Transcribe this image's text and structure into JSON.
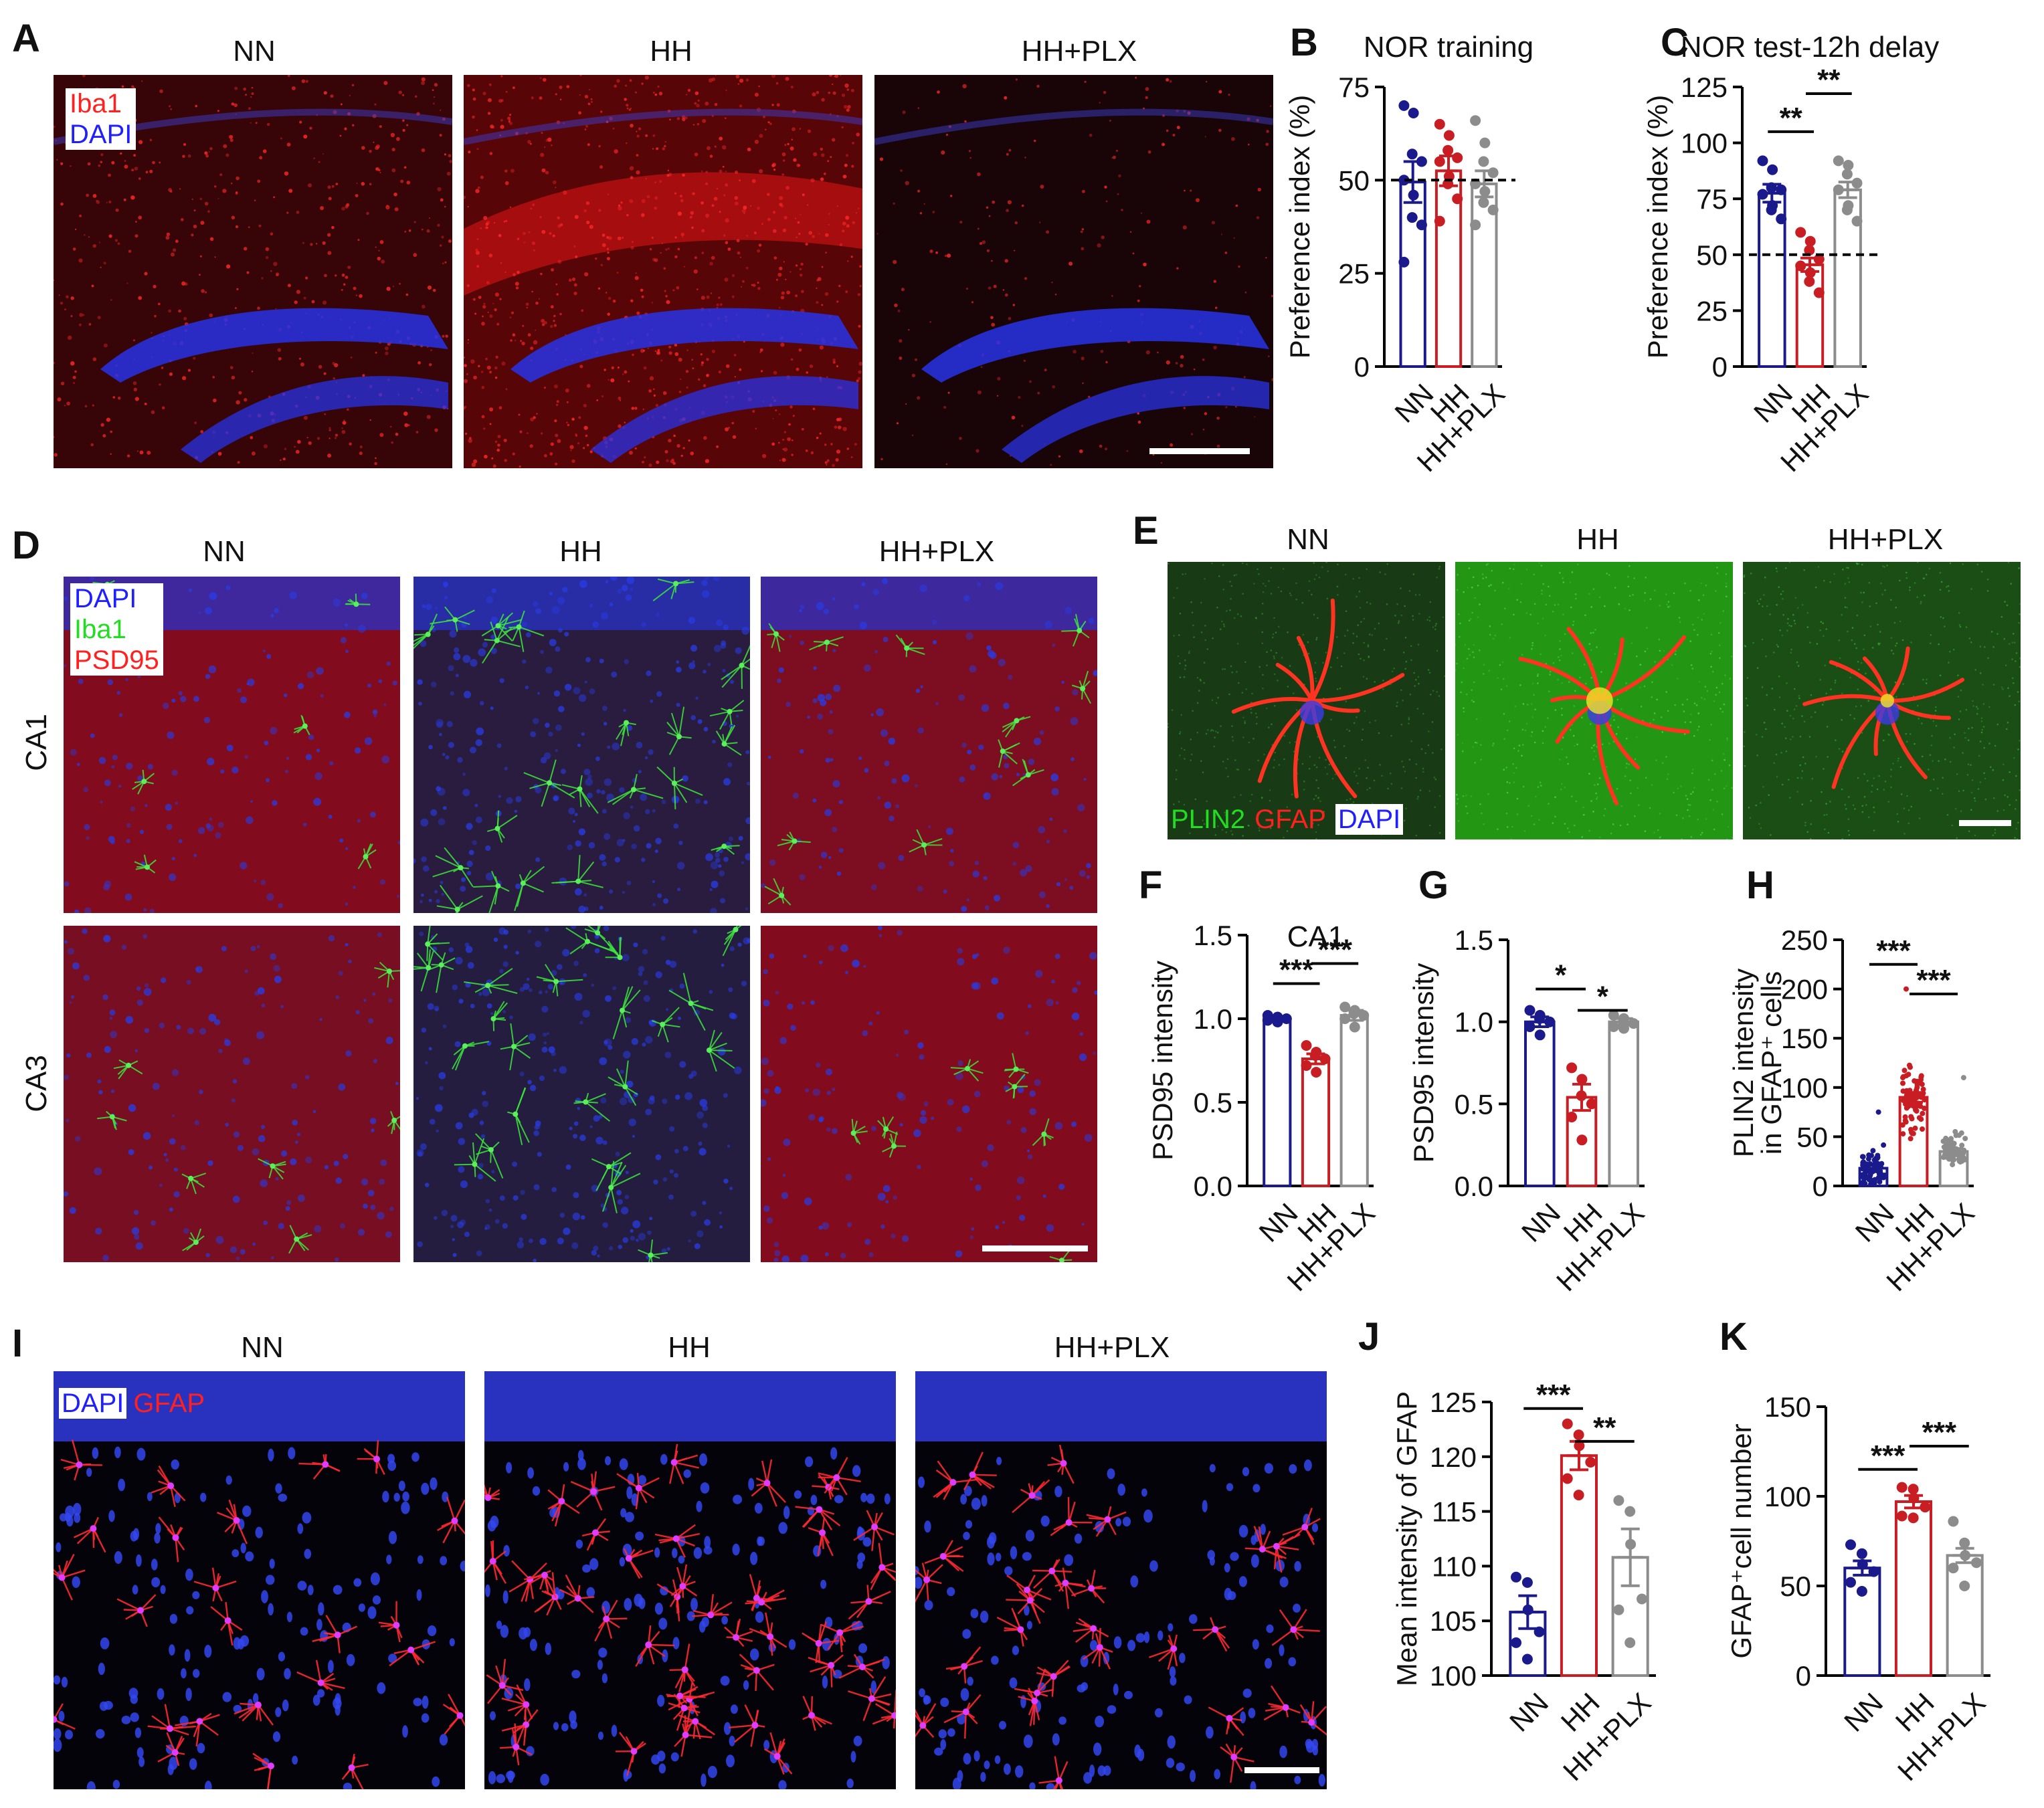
{
  "colors": {
    "NN": "#1a1a8c",
    "HH": "#c81e23",
    "HH+PLX": "#8c8c8c",
    "ref": "#000000"
  },
  "panels": {
    "A": {
      "letter": "A",
      "titles": [
        "NN",
        "HH",
        "HH+PLX"
      ],
      "legend": [
        {
          "text": "Iba1",
          "color": "#ff2020"
        },
        {
          "text": "DAPI",
          "color": "#2020ff"
        }
      ]
    },
    "D": {
      "letter": "D",
      "titles": [
        "NN",
        "HH",
        "HH+PLX"
      ],
      "rows": [
        "CA1",
        "CA3"
      ],
      "legend": [
        {
          "text": "DAPI",
          "color": "#2020ff"
        },
        {
          "text": "Iba1",
          "color": "#22dd22"
        },
        {
          "text": "PSD95",
          "color": "#ff2020"
        }
      ]
    },
    "E": {
      "letter": "E",
      "titles": [
        "NN",
        "HH",
        "HH+PLX"
      ],
      "legend": [
        {
          "text": "PLIN2",
          "color": "#22dd22"
        },
        {
          "text": "GFAP",
          "color": "#ff2020"
        },
        {
          "text": "DAPI",
          "color": "#2020ff"
        }
      ]
    },
    "I": {
      "letter": "I",
      "titles": [
        "NN",
        "HH",
        "HH+PLX"
      ],
      "legend": [
        {
          "text": "DAPI",
          "color": "#2020ff"
        },
        {
          "text": "GFAP",
          "color": "#ff2020"
        }
      ]
    }
  },
  "chart_data": [
    {
      "id": "B",
      "letter": "B",
      "type": "bar",
      "title": "NOR training",
      "ylabel": "Preference index (%)",
      "categories": [
        "NN",
        "HH",
        "HH+PLX"
      ],
      "ylim": [
        0,
        75
      ],
      "yticks": [
        0,
        25,
        50,
        75
      ],
      "values": [
        49.5,
        52.5,
        49
      ],
      "sem": [
        5.5,
        4,
        3.5
      ],
      "reference_line": 50,
      "points": [
        [
          70,
          68,
          57,
          55,
          50,
          46,
          40,
          38,
          28
        ],
        [
          65,
          62,
          58,
          56,
          55,
          51,
          49,
          45,
          39
        ],
        [
          66,
          60,
          55,
          52,
          49,
          47,
          44,
          42,
          38
        ]
      ],
      "significance": []
    },
    {
      "id": "C",
      "letter": "C",
      "type": "bar",
      "title": "NOR test-12h delay",
      "ylabel": "Preference index (%)",
      "categories": [
        "NN",
        "HH",
        "HH+PLX"
      ],
      "ylim": [
        0,
        125
      ],
      "yticks": [
        0,
        25,
        50,
        75,
        100,
        125
      ],
      "values": [
        77.5,
        45.5,
        79
      ],
      "sem": [
        4,
        3,
        3.5
      ],
      "reference_line": 50,
      "points": [
        [
          92,
          88,
          80,
          79,
          77,
          72,
          70,
          66
        ],
        [
          60,
          56,
          52,
          48,
          45,
          42,
          38,
          33
        ],
        [
          92,
          90,
          86,
          82,
          79,
          72,
          70,
          65
        ]
      ],
      "significance": [
        {
          "from": 0,
          "to": 1,
          "text": "**"
        },
        {
          "from": 1,
          "to": 2,
          "text": "**"
        }
      ]
    },
    {
      "id": "F",
      "letter": "F",
      "type": "bar",
      "title": "CA1",
      "ylabel": "PSD95 intensity",
      "categories": [
        "NN",
        "HH",
        "HH+PLX"
      ],
      "ylim": [
        0,
        1.5
      ],
      "yticks": [
        0.0,
        0.5,
        1.0,
        1.5
      ],
      "values": [
        1.0,
        0.76,
        1.02
      ],
      "sem": [
        0.01,
        0.03,
        0.03
      ],
      "points": [
        [
          1.02,
          1.01,
          1.0,
          1.0,
          0.99,
          0.98
        ],
        [
          0.84,
          0.8,
          0.78,
          0.76,
          0.72,
          0.68
        ],
        [
          1.07,
          1.05,
          1.03,
          1.02,
          1.0,
          0.95
        ]
      ],
      "significance": [
        {
          "from": 0,
          "to": 1,
          "text": "***"
        },
        {
          "from": 1,
          "to": 2,
          "text": "***"
        }
      ]
    },
    {
      "id": "G",
      "letter": "G",
      "type": "bar",
      "title": "",
      "ylabel": "PSD95 intensity",
      "categories": [
        "NN",
        "HH",
        "HH+PLX"
      ],
      "ylim": [
        0,
        1.5
      ],
      "yticks": [
        0.0,
        0.5,
        1.0,
        1.5
      ],
      "values": [
        1.0,
        0.54,
        1.0
      ],
      "sem": [
        0.03,
        0.08,
        0.02
      ],
      "points": [
        [
          1.07,
          1.04,
          1.02,
          1.0,
          0.97,
          0.92
        ],
        [
          0.72,
          0.65,
          0.55,
          0.5,
          0.42,
          0.28
        ],
        [
          1.04,
          1.02,
          1.0,
          0.99,
          0.97,
          0.96
        ]
      ],
      "significance": [
        {
          "from": 0,
          "to": 1,
          "text": "*"
        },
        {
          "from": 1,
          "to": 2,
          "text": "*"
        }
      ]
    },
    {
      "id": "H",
      "letter": "H",
      "type": "bar",
      "title": "",
      "ylabel": [
        "PLIN2 intensity",
        "in GFAP⁺ cells"
      ],
      "categories": [
        "NN",
        "HH",
        "HH+PLX"
      ],
      "ylim": [
        0,
        250
      ],
      "yticks": [
        0,
        50,
        100,
        150,
        200,
        250
      ],
      "values": [
        18,
        90,
        35
      ],
      "sem": [
        3,
        5,
        3
      ],
      "cloud": [
        {
          "center": 18,
          "spread": 16,
          "max": 75,
          "n": 70
        },
        {
          "center": 90,
          "spread": 30,
          "max": 200,
          "n": 80
        },
        {
          "center": 35,
          "spread": 14,
          "max": 110,
          "n": 75
        }
      ],
      "significance": [
        {
          "from": 0,
          "to": 1,
          "text": "***"
        },
        {
          "from": 1,
          "to": 2,
          "text": "***"
        }
      ]
    },
    {
      "id": "J",
      "letter": "J",
      "type": "bar",
      "title": "",
      "ylabel": "Mean intensity of GFAP",
      "categories": [
        "NN",
        "HH",
        "HH+PLX"
      ],
      "ylim": [
        100,
        125
      ],
      "yticks": [
        100,
        105,
        110,
        115,
        120,
        125
      ],
      "values": [
        105.8,
        120.1,
        110.8
      ],
      "sem": [
        1.5,
        1.3,
        2.6
      ],
      "points": [
        [
          109,
          108.5,
          106,
          104,
          103,
          101.5
        ],
        [
          123,
          122,
          121,
          119.5,
          118,
          116.5
        ],
        [
          116,
          115,
          112,
          107,
          106,
          103
        ]
      ],
      "significance": [
        {
          "from": 0,
          "to": 1,
          "text": "***"
        },
        {
          "from": 1,
          "to": 2,
          "text": "**"
        }
      ]
    },
    {
      "id": "K",
      "letter": "K",
      "type": "bar",
      "title": "",
      "ylabel": "GFAP⁺cell number",
      "categories": [
        "NN",
        "HH",
        "HH+PLX"
      ],
      "ylim": [
        0,
        150
      ],
      "yticks": [
        0,
        50,
        100,
        150
      ],
      "values": [
        60,
        97,
        67
      ],
      "sem": [
        4,
        3.5,
        4
      ],
      "points": [
        [
          73,
          68,
          62,
          58,
          52,
          47
        ],
        [
          105,
          104,
          99,
          94,
          89,
          88
        ],
        [
          86,
          74,
          67,
          63,
          60,
          50
        ]
      ],
      "significance": [
        {
          "from": 0,
          "to": 1,
          "text": "***"
        },
        {
          "from": 1,
          "to": 2,
          "text": "***"
        }
      ]
    }
  ]
}
